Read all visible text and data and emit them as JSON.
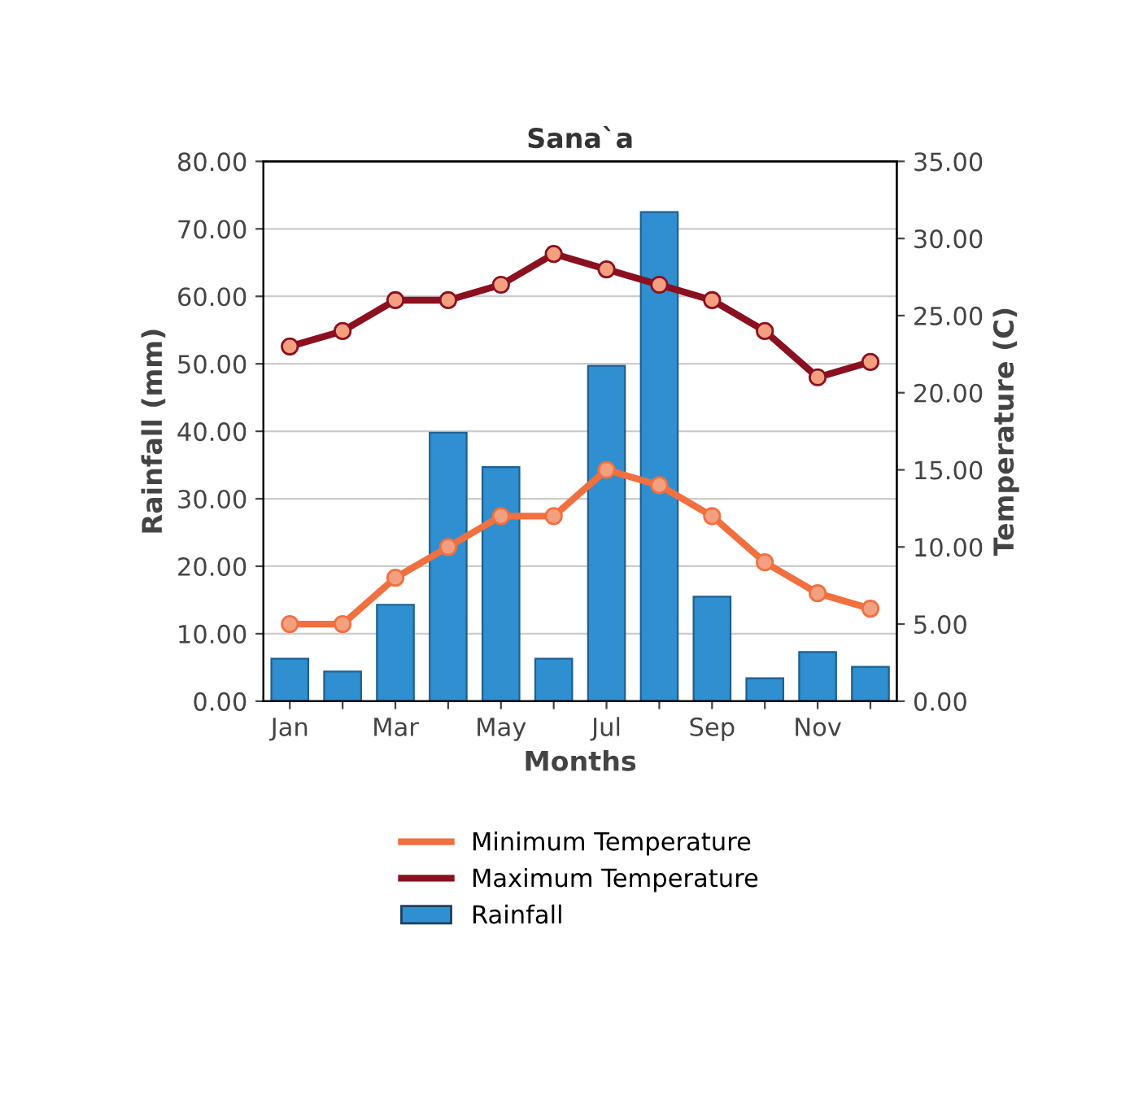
{
  "chart_data": {
    "type": "bar",
    "title": "Sana`a",
    "xlabel": "Months",
    "ylabel": "Rainfall (mm)",
    "y2label": "Temperature (C)",
    "categories": [
      "Jan",
      null,
      "Mar",
      null,
      "May",
      null,
      "Jul",
      null,
      "Sep",
      null,
      "Nov",
      null
    ],
    "series": [
      {
        "name": "Minimum Temperature",
        "type": "line",
        "axis": "y2",
        "color": "#f07040",
        "values": [
          5,
          5,
          8,
          10,
          12,
          12,
          15,
          14,
          12,
          9,
          7,
          6
        ]
      },
      {
        "name": "Maximum Temperature",
        "type": "line",
        "axis": "y2",
        "color": "#8b1020",
        "values": [
          23,
          24,
          26,
          26,
          27,
          29,
          28,
          27,
          26,
          24,
          21,
          22
        ]
      },
      {
        "name": "Rainfall",
        "color": "#2f8fd0",
        "values": [
          6.3,
          4.4,
          14.3,
          39.8,
          34.7,
          6.3,
          49.7,
          72.5,
          15.5,
          3.4,
          7.3,
          5.1
        ]
      }
    ],
    "ylim": [
      0,
      80
    ],
    "yticks": [
      {
        "value": 0,
        "label": "0.00"
      },
      {
        "value": 10,
        "label": "10.00"
      },
      {
        "value": 20,
        "label": "20.00"
      },
      {
        "value": 30,
        "label": "30.00"
      },
      {
        "value": 40,
        "label": "40.00"
      },
      {
        "value": 50,
        "label": "50.00"
      },
      {
        "value": 60,
        "label": "60.00"
      },
      {
        "value": 70,
        "label": "70.00"
      },
      {
        "value": 80,
        "label": "80.00"
      }
    ],
    "y2lim": [
      0,
      35
    ],
    "y2ticks": [
      {
        "value": 0,
        "label": "0.00"
      },
      {
        "value": 5,
        "label": "5.00"
      },
      {
        "value": 10,
        "label": "10.00"
      },
      {
        "value": 15,
        "label": "15.00"
      },
      {
        "value": 20,
        "label": "20.00"
      },
      {
        "value": 25,
        "label": "25.00"
      },
      {
        "value": 30,
        "label": "30.00"
      },
      {
        "value": 35,
        "label": "35.00"
      }
    ],
    "grid": "y",
    "legend": "bottom",
    "marker": "circle"
  }
}
